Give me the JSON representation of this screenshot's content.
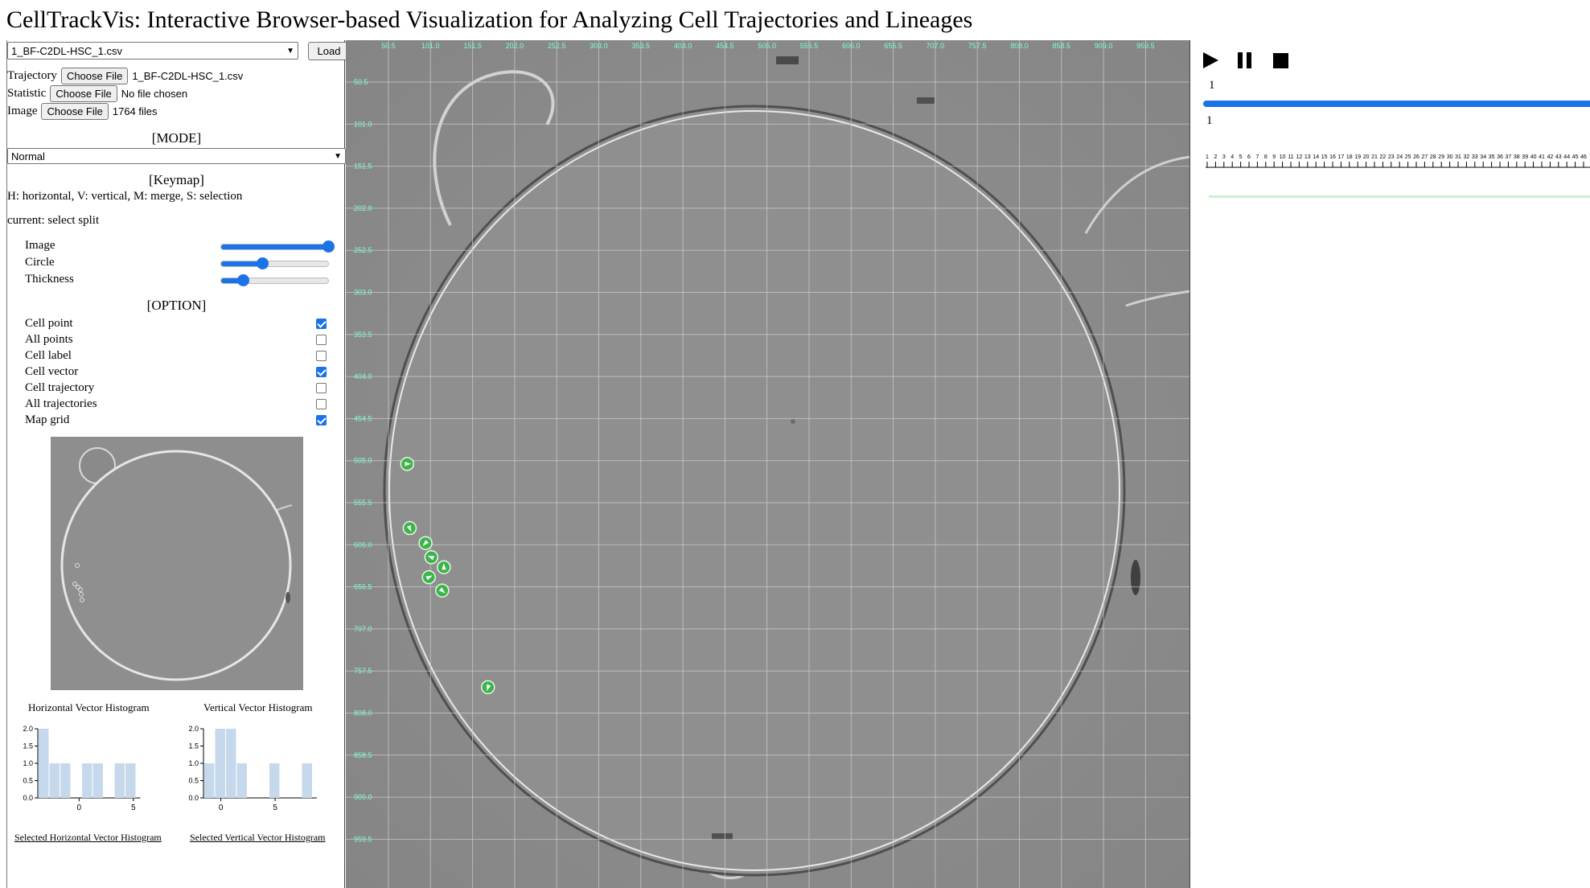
{
  "app": {
    "title": "CellTrackVis: Interactive Browser-based Visualization for Analyzing Cell Trajectories and Lineages"
  },
  "left": {
    "csv_select": {
      "value": "1_BF-C2DL-HSC_1.csv"
    },
    "load_label": "Load",
    "files": [
      {
        "label": "Trajectory",
        "button": "Choose File",
        "status": "1_BF-C2DL-HSC_1.csv"
      },
      {
        "label": "Statistic",
        "button": "Choose File",
        "status": "No file chosen"
      },
      {
        "label": "Image",
        "button": "Choose File",
        "status": "1764 files"
      }
    ],
    "mode_heading": "[MODE]",
    "mode_value": "Normal",
    "keymap_heading": "[Keymap]",
    "keymap_text": "H: horizontal, V: vertical, M: merge, S: selection",
    "current_text": "current: select split",
    "sliders": [
      {
        "label": "Image",
        "value": 1.0
      },
      {
        "label": "Circle",
        "value": 0.38
      },
      {
        "label": "Thickness",
        "value": 0.2
      }
    ],
    "option_heading": "[OPTION]",
    "options": [
      {
        "label": "Cell point",
        "checked": true
      },
      {
        "label": "All points",
        "checked": false
      },
      {
        "label": "Cell label",
        "checked": false
      },
      {
        "label": "Cell vector",
        "checked": true
      },
      {
        "label": "Cell trajectory",
        "checked": false
      },
      {
        "label": "All trajectories",
        "checked": false
      },
      {
        "label": "Map grid",
        "checked": true
      }
    ],
    "hist_h": {
      "title": "Horizontal Vector Histogram",
      "y_ticks": [
        "2.0",
        "1.5",
        "1.0",
        "0.5",
        "0.0"
      ],
      "x_ticks": [
        "0",
        "5"
      ],
      "bars": [
        2,
        1,
        1,
        0,
        1,
        1,
        0,
        1,
        1
      ],
      "link": "Selected Horizontal Vector Histogram"
    },
    "hist_v": {
      "title": "Vertical Vector Histogram",
      "y_ticks": [
        "2.0",
        "1.5",
        "1.0",
        "0.5",
        "0.0"
      ],
      "x_ticks": [
        "0",
        "5"
      ],
      "bars": [
        1,
        2,
        2,
        1,
        0,
        0,
        1,
        0,
        0,
        1
      ],
      "link": "Selected Vertical Vector Histogram"
    }
  },
  "map": {
    "x_ticks": [
      "50.5",
      "101.0",
      "151.5",
      "202.0",
      "252.5",
      "303.0",
      "353.5",
      "404.0",
      "454.5",
      "505.0",
      "555.5",
      "606.0",
      "656.5",
      "707.0",
      "757.5",
      "808.0",
      "858.5",
      "909.0",
      "959.5"
    ],
    "y_ticks": [
      "50.5",
      "101.0",
      "151.5",
      "202.0",
      "252.5",
      "303.0",
      "353.5",
      "404.0",
      "454.5",
      "505.0",
      "555.5",
      "606.0",
      "656.5",
      "707.0",
      "757.5",
      "808.0",
      "858.5",
      "909.0",
      "959.5"
    ],
    "cells": [
      {
        "x": 73,
        "y": 508
      },
      {
        "x": 76,
        "y": 585
      },
      {
        "x": 95,
        "y": 603
      },
      {
        "x": 102,
        "y": 620
      },
      {
        "x": 117,
        "y": 632
      },
      {
        "x": 99,
        "y": 644
      },
      {
        "x": 115,
        "y": 660
      },
      {
        "x": 170,
        "y": 776
      }
    ],
    "accent": "#7fffd4",
    "cell_color": "#3cb44b"
  },
  "right": {
    "play_icon": "play-icon",
    "pause_icon": "pause-icon",
    "stop_icon": "stop-icon",
    "frame_top": "1",
    "frame_bottom": "1",
    "timeline_ticks": [
      "1",
      "2",
      "3",
      "4",
      "5",
      "6",
      "7",
      "8",
      "9",
      "10",
      "11",
      "12",
      "13",
      "14",
      "15",
      "16",
      "17",
      "18",
      "19",
      "20",
      "21",
      "22",
      "23",
      "24",
      "25",
      "26",
      "27",
      "28",
      "29",
      "30",
      "31",
      "32",
      "33",
      "34",
      "35",
      "36",
      "37",
      "38",
      "39",
      "40",
      "41",
      "42",
      "43",
      "44",
      "45",
      "46"
    ]
  }
}
